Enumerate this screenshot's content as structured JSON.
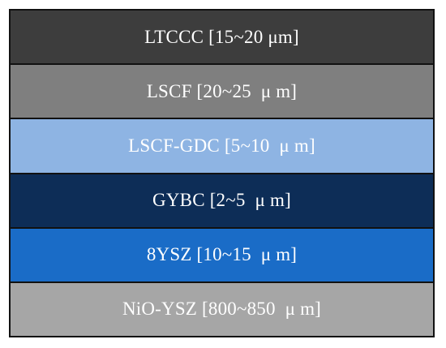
{
  "layers": [
    {
      "label": "LTCCC [15~20 μm]",
      "color": "#3d3d3d"
    },
    {
      "label": "LSCF [20~25  μ m]",
      "color": "#7f7f7f"
    },
    {
      "label": "LSCF-GDC [5~10  μ m]",
      "color": "#8eb4e3"
    },
    {
      "label": "GYBC [2~5  μ m]",
      "color": "#0d2d57"
    },
    {
      "label": "8YSZ [10~15  μ m]",
      "color": "#1a6cc7"
    },
    {
      "label": "NiO-YSZ [800~850  μ m]",
      "color": "#a6a6a6"
    }
  ]
}
